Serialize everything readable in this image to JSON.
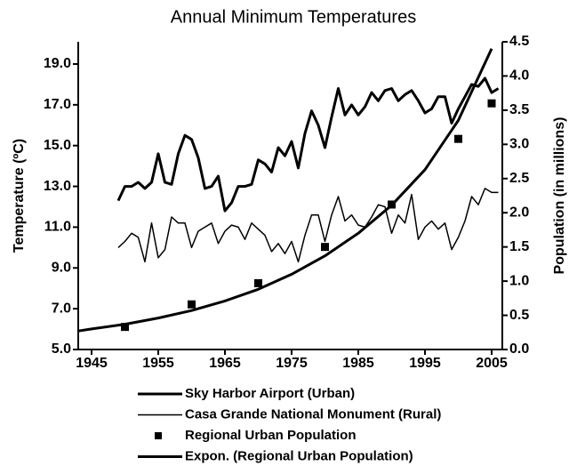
{
  "chart_data": {
    "type": "line",
    "title": "Annual Minimum Temperatures",
    "ylabel": "Temperature (ºC)",
    "y2label": "Population (in millions)",
    "xlim": [
      1943,
      2006.6
    ],
    "xticks": [
      1945,
      1955,
      1965,
      1975,
      1985,
      1995,
      2005
    ],
    "ylim": [
      5,
      20.09
    ],
    "yticks": [
      {
        "value": 5,
        "label": "5.0"
      },
      {
        "value": 7,
        "label": "7.0"
      },
      {
        "value": 9,
        "label": "9.0"
      },
      {
        "value": 11,
        "label": "11.0"
      },
      {
        "value": 13,
        "label": "13.0"
      },
      {
        "value": 15,
        "label": "15.0"
      },
      {
        "value": 17,
        "label": "17.0"
      },
      {
        "value": 19,
        "label": "19.0"
      }
    ],
    "y2lim": [
      0,
      4.5
    ],
    "y2ticks": [
      {
        "value": 0,
        "label": "0.0"
      },
      {
        "value": 0.5,
        "label": "0.5"
      },
      {
        "value": 1,
        "label": "1.0"
      },
      {
        "value": 1.5,
        "label": "1.5"
      },
      {
        "value": 2,
        "label": "2.0"
      },
      {
        "value": 2.5,
        "label": "2.5"
      },
      {
        "value": 3,
        "label": "3.0"
      },
      {
        "value": 3.5,
        "label": "3.5"
      },
      {
        "value": 4,
        "label": "4.0"
      },
      {
        "value": 4.5,
        "label": "4.5"
      }
    ],
    "series": [
      {
        "name": "Sky Harbor Airport (Urban)",
        "color": "#000000",
        "mark": "line",
        "line_width": 3,
        "x": [
          1949,
          1950,
          1951,
          1952,
          1953,
          1954,
          1955,
          1956,
          1957,
          1958,
          1959,
          1960,
          1961,
          1962,
          1963,
          1964,
          1965,
          1966,
          1967,
          1968,
          1969,
          1970,
          1971,
          1972,
          1973,
          1974,
          1975,
          1976,
          1977,
          1978,
          1979,
          1980,
          1981,
          1982,
          1983,
          1984,
          1985,
          1986,
          1987,
          1988,
          1989,
          1990,
          1991,
          1992,
          1993,
          1994,
          1995,
          1996,
          1997,
          1998,
          1999,
          2000,
          2001,
          2002,
          2003,
          2004,
          2005,
          2006
        ],
        "values": [
          12.3,
          13.0,
          13.0,
          13.2,
          12.9,
          13.2,
          14.6,
          13.2,
          13.1,
          14.6,
          15.5,
          15.3,
          14.4,
          12.9,
          13.0,
          13.5,
          11.8,
          12.2,
          13.0,
          13.0,
          13.1,
          14.3,
          14.1,
          13.7,
          14.9,
          14.5,
          15.2,
          13.9,
          15.6,
          16.7,
          16.0,
          14.9,
          16.4,
          17.8,
          16.5,
          17.0,
          16.5,
          16.9,
          17.6,
          17.2,
          17.7,
          17.8,
          17.2,
          17.5,
          17.7,
          17.2,
          16.6,
          16.8,
          17.4,
          17.4,
          16.1,
          16.8,
          17.4,
          18.0,
          17.9,
          18.3,
          17.6,
          17.8
        ]
      },
      {
        "name": "Casa Grande National Monument (Rural)",
        "color": "#000000",
        "mark": "line",
        "line_width": 1.5,
        "x": [
          1949,
          1950,
          1951,
          1952,
          1953,
          1954,
          1955,
          1956,
          1957,
          1958,
          1959,
          1960,
          1961,
          1962,
          1963,
          1964,
          1965,
          1966,
          1967,
          1968,
          1969,
          1970,
          1971,
          1972,
          1973,
          1974,
          1975,
          1976,
          1977,
          1978,
          1979,
          1980,
          1981,
          1982,
          1983,
          1984,
          1985,
          1986,
          1987,
          1988,
          1989,
          1990,
          1991,
          1992,
          1993,
          1994,
          1995,
          1996,
          1997,
          1998,
          1999,
          2000,
          2001,
          2002,
          2003,
          2004,
          2005,
          2006
        ],
        "values": [
          10.0,
          10.3,
          10.7,
          10.5,
          9.3,
          11.2,
          9.5,
          9.9,
          11.5,
          11.2,
          11.2,
          10.0,
          10.8,
          11.0,
          11.2,
          10.2,
          10.8,
          11.1,
          11.0,
          10.4,
          11.2,
          10.9,
          10.6,
          9.8,
          10.2,
          9.7,
          10.3,
          9.3,
          10.6,
          11.6,
          11.6,
          10.3,
          11.6,
          12.5,
          11.3,
          11.6,
          11.1,
          11.0,
          11.5,
          12.1,
          12.0,
          10.7,
          11.6,
          11.2,
          12.6,
          10.4,
          11.0,
          11.3,
          10.9,
          11.2,
          9.9,
          10.5,
          11.3,
          12.5,
          12.1,
          12.9,
          12.7,
          12.7
        ]
      },
      {
        "name": "Regional Urban Population",
        "color": "#000000",
        "mark": "marker",
        "axis": "y2",
        "x": [
          1950,
          1960,
          1970,
          1980,
          1990,
          2000,
          2005
        ],
        "values": [
          0.33,
          0.66,
          0.97,
          1.5,
          2.12,
          3.08,
          3.6
        ]
      },
      {
        "name": "Expon. (Regional Urban Population)",
        "color": "#000000",
        "mark": "line",
        "line_width": 3,
        "axis": "y2",
        "x": [
          1943,
          1945,
          1950,
          1955,
          1960,
          1965,
          1970,
          1975,
          1980,
          1985,
          1990,
          1995,
          2000,
          2005
        ],
        "values": [
          0.27,
          0.3,
          0.37,
          0.46,
          0.57,
          0.71,
          0.88,
          1.1,
          1.37,
          1.7,
          2.11,
          2.63,
          3.35,
          4.4
        ]
      }
    ]
  }
}
